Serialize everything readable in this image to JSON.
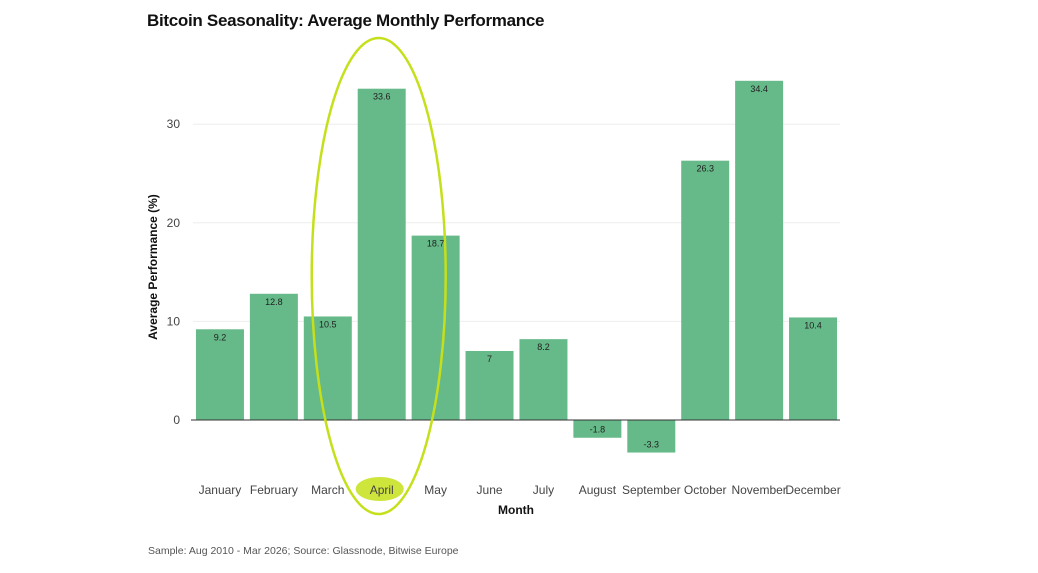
{
  "chart_data": {
    "type": "bar",
    "title": "Bitcoin Seasonality: Average Monthly Performance",
    "xlabel": "Month",
    "ylabel": "Average Performance (%)",
    "categories": [
      "January",
      "February",
      "March",
      "April",
      "May",
      "June",
      "July",
      "August",
      "September",
      "October",
      "November",
      "December"
    ],
    "values": [
      9.2,
      12.8,
      10.5,
      33.6,
      18.7,
      7,
      8.2,
      -1.8,
      -3.3,
      26.3,
      34.4,
      10.4
    ],
    "value_labels": [
      "9.2",
      "12.8",
      "10.5",
      "33.6",
      "18.7",
      "7",
      "8.2",
      "-1.8",
      "-3.3",
      "26.3",
      "34.4",
      "10.4"
    ],
    "yticks": [
      0,
      10,
      20,
      30
    ],
    "ytick_labels": [
      "0",
      "10",
      "20",
      "30"
    ],
    "ylim": [
      -6,
      38
    ],
    "grid": true,
    "highlight_category": "April",
    "source": "Sample: Aug 2010 - Mar 2026; Source: Glassnode, Bitwise Europe",
    "colors": {
      "bar": "#66b988",
      "highlight": "#c5e01a",
      "grid": "#eeeeee",
      "baseline": "#333333"
    }
  }
}
